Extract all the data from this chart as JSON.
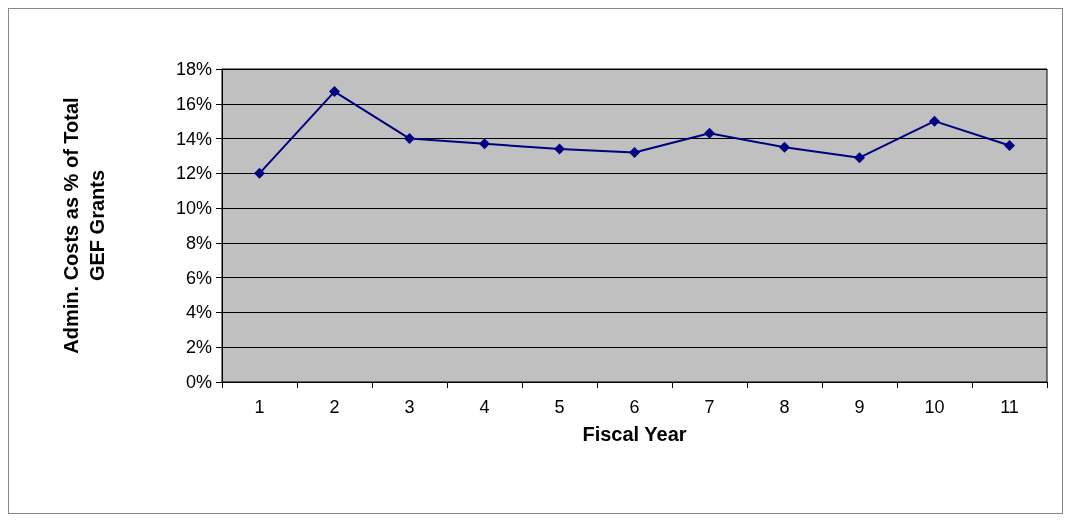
{
  "chart_data": {
    "type": "line",
    "xlabel": "Fiscal Year",
    "ylabel": "Admin. Costs as % of Total\nGEF Grants",
    "categories": [
      "1",
      "2",
      "3",
      "4",
      "5",
      "6",
      "7",
      "8",
      "9",
      "10",
      "11"
    ],
    "series": [
      {
        "color": "#000080",
        "values": [
          12.0,
          16.7,
          14.0,
          13.7,
          13.4,
          13.2,
          14.3,
          13.5,
          12.9,
          15.0,
          13.6
        ]
      }
    ],
    "ylim": [
      0,
      18
    ],
    "yticks": [
      {
        "value": 0,
        "label": "0%"
      },
      {
        "value": 2,
        "label": "2%"
      },
      {
        "value": 4,
        "label": "4%"
      },
      {
        "value": 6,
        "label": "6%"
      },
      {
        "value": 8,
        "label": "8%"
      },
      {
        "value": 10,
        "label": "10%"
      },
      {
        "value": 12,
        "label": "12%"
      },
      {
        "value": 14,
        "label": "14%"
      },
      {
        "value": 16,
        "label": "16%"
      },
      {
        "value": 18,
        "label": "18%"
      }
    ],
    "grid": "y",
    "marker": "diamond",
    "line_style": "solid"
  }
}
